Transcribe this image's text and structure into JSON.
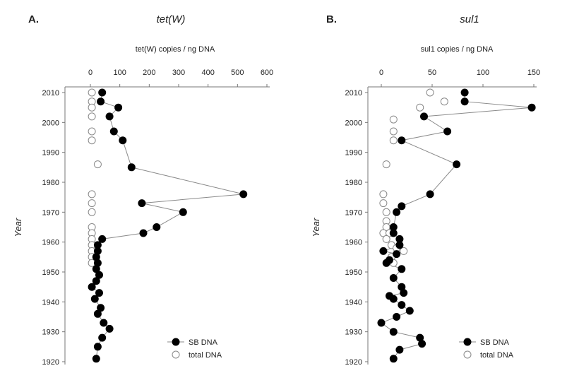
{
  "panels": [
    {
      "letter": "A.",
      "title": "tet(W)",
      "xlabel": "tet(W) copies / ng DNA",
      "ylabel": "Year"
    },
    {
      "letter": "B.",
      "title": "sul1",
      "xlabel": "sul1 copies / ng DNA",
      "ylabel": "Year"
    }
  ],
  "legend": {
    "sb": "SB DNA",
    "total": "total DNA"
  },
  "chart_data": [
    {
      "type": "scatter",
      "title": "tet(W)",
      "xlabel": "tet(W) copies / ng DNA",
      "ylabel": "Year",
      "xlim": [
        0,
        600
      ],
      "ylim": [
        1920,
        2010
      ],
      "xticks": [
        0,
        100,
        200,
        300,
        400,
        500,
        600
      ],
      "yticks": [
        1920,
        1930,
        1940,
        1950,
        1960,
        1970,
        1980,
        1990,
        2000,
        2010
      ],
      "x_axis_position": "top",
      "legend_position": "bottom-right",
      "series": [
        {
          "name": "SB DNA",
          "marker": "filled-circle",
          "connected": true,
          "points": [
            {
              "x": 40,
              "y": 2010
            },
            {
              "x": 35,
              "y": 2007
            },
            {
              "x": 95,
              "y": 2005
            },
            {
              "x": 65,
              "y": 2002
            },
            {
              "x": 80,
              "y": 1997
            },
            {
              "x": 110,
              "y": 1994
            },
            {
              "x": 140,
              "y": 1985
            },
            {
              "x": 520,
              "y": 1976
            },
            {
              "x": 175,
              "y": 1973
            },
            {
              "x": 315,
              "y": 1970
            },
            {
              "x": 225,
              "y": 1965
            },
            {
              "x": 180,
              "y": 1963
            },
            {
              "x": 40,
              "y": 1961
            },
            {
              "x": 25,
              "y": 1959
            },
            {
              "x": 25,
              "y": 1957
            },
            {
              "x": 20,
              "y": 1955
            },
            {
              "x": 25,
              "y": 1953
            },
            {
              "x": 20,
              "y": 1951
            },
            {
              "x": 30,
              "y": 1949
            },
            {
              "x": 20,
              "y": 1947
            },
            {
              "x": 5,
              "y": 1945
            },
            {
              "x": 30,
              "y": 1943
            },
            {
              "x": 15,
              "y": 1941
            },
            {
              "x": 35,
              "y": 1938
            },
            {
              "x": 25,
              "y": 1936
            },
            {
              "x": 45,
              "y": 1933
            },
            {
              "x": 65,
              "y": 1931
            },
            {
              "x": 40,
              "y": 1928
            },
            {
              "x": 25,
              "y": 1925
            },
            {
              "x": 20,
              "y": 1921
            }
          ]
        },
        {
          "name": "total DNA",
          "marker": "open-circle",
          "connected": false,
          "points": [
            {
              "x": 5,
              "y": 2010
            },
            {
              "x": 5,
              "y": 2007
            },
            {
              "x": 5,
              "y": 2005
            },
            {
              "x": 5,
              "y": 2002
            },
            {
              "x": 5,
              "y": 1997
            },
            {
              "x": 5,
              "y": 1994
            },
            {
              "x": 25,
              "y": 1986
            },
            {
              "x": 5,
              "y": 1976
            },
            {
              "x": 5,
              "y": 1973
            },
            {
              "x": 5,
              "y": 1970
            },
            {
              "x": 5,
              "y": 1965
            },
            {
              "x": 5,
              "y": 1963
            },
            {
              "x": 5,
              "y": 1961
            },
            {
              "x": 5,
              "y": 1959
            },
            {
              "x": 5,
              "y": 1957
            },
            {
              "x": 5,
              "y": 1955
            },
            {
              "x": 5,
              "y": 1953
            }
          ]
        }
      ]
    },
    {
      "type": "scatter",
      "title": "sul1",
      "xlabel": "sul1 copies / ng DNA",
      "ylabel": "Year",
      "xlim": [
        0,
        150
      ],
      "ylim": [
        1920,
        2010
      ],
      "xticks": [
        0,
        50,
        100,
        150
      ],
      "yticks": [
        1920,
        1930,
        1940,
        1950,
        1960,
        1970,
        1980,
        1990,
        2000,
        2010
      ],
      "x_axis_position": "top",
      "legend_position": "bottom-right",
      "series": [
        {
          "name": "SB DNA",
          "marker": "filled-circle",
          "connected": true,
          "points": [
            {
              "x": 82,
              "y": 2010
            },
            {
              "x": 82,
              "y": 2007
            },
            {
              "x": 148,
              "y": 2005
            },
            {
              "x": 42,
              "y": 2002
            },
            {
              "x": 65,
              "y": 1997
            },
            {
              "x": 20,
              "y": 1994
            },
            {
              "x": 74,
              "y": 1986
            },
            {
              "x": 48,
              "y": 1976
            },
            {
              "x": 20,
              "y": 1972
            },
            {
              "x": 15,
              "y": 1970
            },
            {
              "x": 12,
              "y": 1965
            },
            {
              "x": 12,
              "y": 1963
            },
            {
              "x": 18,
              "y": 1961
            },
            {
              "x": 18,
              "y": 1959
            },
            {
              "x": 2,
              "y": 1957
            },
            {
              "x": 15,
              "y": 1956
            },
            {
              "x": 8,
              "y": 1954
            },
            {
              "x": 5,
              "y": 1953
            },
            {
              "x": 20,
              "y": 1951
            },
            {
              "x": 12,
              "y": 1948
            },
            {
              "x": 20,
              "y": 1945
            },
            {
              "x": 22,
              "y": 1943
            },
            {
              "x": 8,
              "y": 1942
            },
            {
              "x": 12,
              "y": 1941
            },
            {
              "x": 20,
              "y": 1939
            },
            {
              "x": 28,
              "y": 1937
            },
            {
              "x": 15,
              "y": 1935
            },
            {
              "x": 0,
              "y": 1933
            },
            {
              "x": 12,
              "y": 1930
            },
            {
              "x": 38,
              "y": 1928
            },
            {
              "x": 40,
              "y": 1926
            },
            {
              "x": 18,
              "y": 1924
            },
            {
              "x": 12,
              "y": 1921
            }
          ]
        },
        {
          "name": "total DNA",
          "marker": "open-circle",
          "connected": false,
          "points": [
            {
              "x": 48,
              "y": 2010
            },
            {
              "x": 62,
              "y": 2007
            },
            {
              "x": 38,
              "y": 2005
            },
            {
              "x": 12,
              "y": 2001
            },
            {
              "x": 12,
              "y": 1997
            },
            {
              "x": 12,
              "y": 1994
            },
            {
              "x": 5,
              "y": 1986
            },
            {
              "x": 2,
              "y": 1976
            },
            {
              "x": 2,
              "y": 1973
            },
            {
              "x": 5,
              "y": 1970
            },
            {
              "x": 5,
              "y": 1967
            },
            {
              "x": 5,
              "y": 1965
            },
            {
              "x": 2,
              "y": 1963
            },
            {
              "x": 8,
              "y": 1963
            },
            {
              "x": 5,
              "y": 1961
            },
            {
              "x": 10,
              "y": 1959
            },
            {
              "x": 15,
              "y": 1958
            },
            {
              "x": 22,
              "y": 1957
            },
            {
              "x": 10,
              "y": 1955
            },
            {
              "x": 12,
              "y": 1953
            }
          ]
        }
      ]
    }
  ]
}
